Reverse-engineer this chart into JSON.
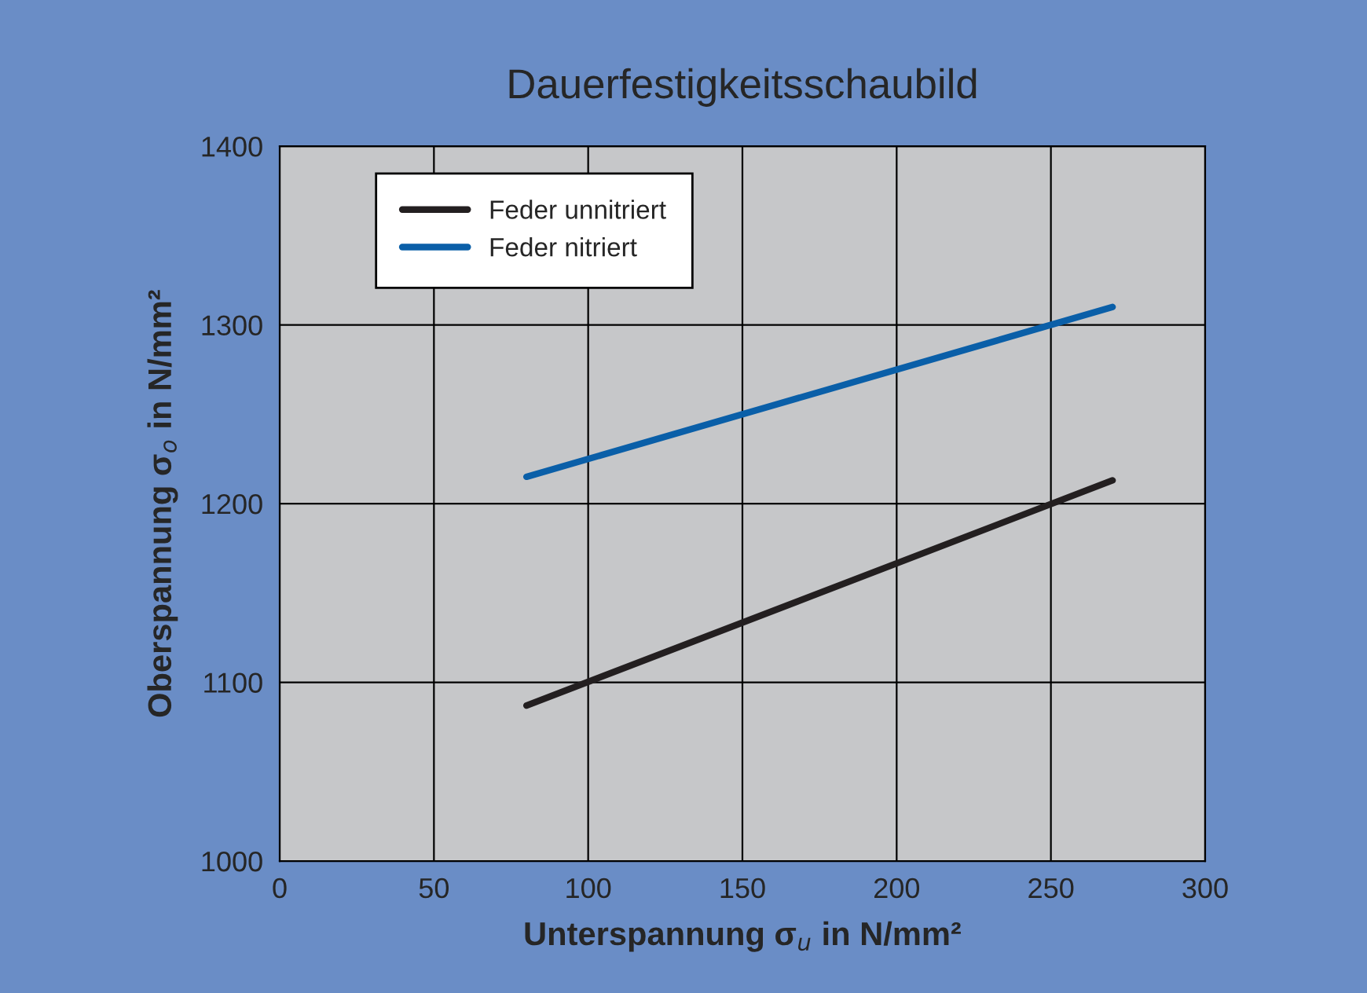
{
  "chart_data": {
    "type": "line",
    "title": "Dauerfestigkeitsschaubild",
    "xlabel": "Unterspannung σ$_{u}$ in N/mm²",
    "ylabel": "Oberspannung σ$_{o}$ in N/mm²",
    "series": [
      {
        "name": "Feder unnitriert",
        "color": "#231f20",
        "values": [
          1087,
          1213
        ]
      },
      {
        "name": "Feder nitriert",
        "color": "#0a5fa8",
        "values": [
          1215,
          1310
        ]
      }
    ],
    "x": [
      80,
      270
    ],
    "xlim": [
      0,
      300
    ],
    "xticks": [
      0,
      50,
      100,
      150,
      200,
      250,
      300
    ],
    "ylim": [
      1000,
      1400
    ],
    "yticks": [
      1000,
      1100,
      1200,
      1300,
      1400
    ],
    "grid": true,
    "legend": "top left",
    "marker": "none",
    "line_style": "solid"
  }
}
